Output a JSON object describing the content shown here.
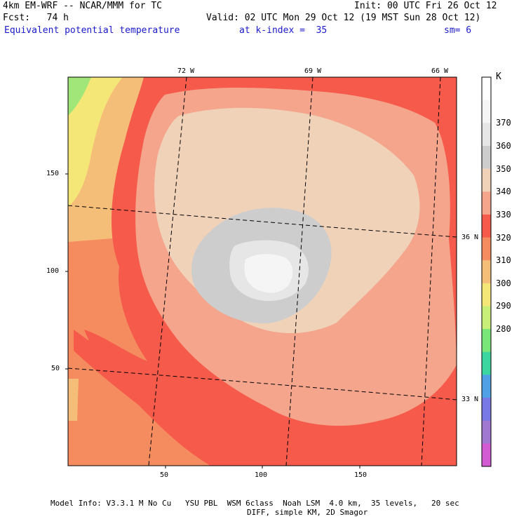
{
  "header": {
    "model": "4km EM-WRF -- NCAR/MMM for TC",
    "init": "Init: 00 UTC Fri 26 Oct 12",
    "fcst": "Fcst:   74 h",
    "valid": "Valid: 02 UTC Mon 29 Oct 12 (19 MST Sun 28 Oct 12)",
    "field": "Equivalent potential temperature",
    "kindex": "at k-index =  35",
    "sm": "sm= 6"
  },
  "map": {
    "lon_labels": [
      "72 W",
      "69 W",
      "66 W"
    ],
    "lat_labels": [
      "36 N",
      "33 N"
    ],
    "x_ticks": [
      "50",
      "100",
      "150"
    ],
    "y_ticks": [
      "150",
      "100",
      "50"
    ]
  },
  "colorbar": {
    "unit": "K",
    "labels": [
      "370",
      "360",
      "350",
      "340",
      "330",
      "320",
      "310",
      "300",
      "290",
      "280"
    ],
    "colors": [
      "#ffffff",
      "#f5f5f5",
      "#e6e6e6",
      "#cdcdcd",
      "#f0d2b9",
      "#f5a58c",
      "#f55a4b",
      "#f58c5f",
      "#f5be78",
      "#f5e678",
      "#c8f078",
      "#78e678",
      "#3cd7a0",
      "#50a0e6",
      "#7878e6",
      "#a078d2",
      "#d25ad2"
    ]
  },
  "footer": {
    "line1": "Model Info: V3.3.1 M No Cu   YSU PBL  WSM 6class  Noah LSM  4.0 km,  35 levels,   20 sec",
    "line2": "DIFF, simple KM, 2D Smagor"
  }
}
